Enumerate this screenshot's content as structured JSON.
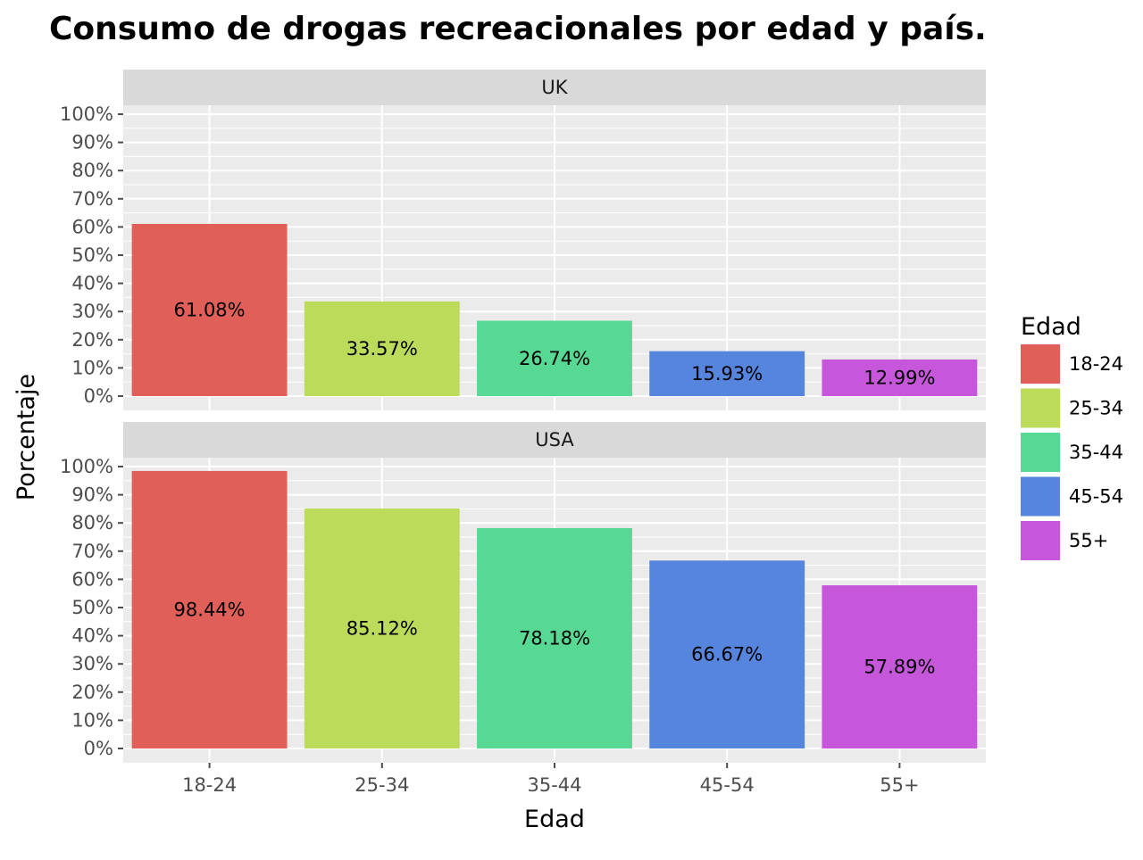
{
  "chart_data": {
    "type": "bar",
    "title": "Consumo de drogas recreacionales por edad y país.",
    "xlabel": "Edad",
    "ylabel": "Porcentaje",
    "categories": [
      "18-24",
      "25-34",
      "35-44",
      "45-54",
      "55+"
    ],
    "ylim": [
      0,
      100
    ],
    "y_ticks": [
      "0%",
      "10%",
      "20%",
      "30%",
      "40%",
      "50%",
      "60%",
      "70%",
      "80%",
      "90%",
      "100%"
    ],
    "grid": true,
    "legend": {
      "title": "Edad",
      "position": "right",
      "entries": [
        "18-24",
        "25-34",
        "35-44",
        "45-54",
        "55+"
      ]
    },
    "colors": [
      "#e05f58",
      "#bcdb5b",
      "#57d994",
      "#5585dc",
      "#c657db"
    ],
    "facets": [
      {
        "name": "UK",
        "values": [
          61.08,
          33.57,
          26.74,
          15.93,
          12.99
        ],
        "labels": [
          "61.08%",
          "33.57%",
          "26.74%",
          "15.93%",
          "12.99%"
        ]
      },
      {
        "name": "USA",
        "values": [
          98.44,
          85.12,
          78.18,
          66.67,
          57.89
        ],
        "labels": [
          "98.44%",
          "85.12%",
          "78.18%",
          "66.67%",
          "57.89%"
        ]
      }
    ]
  }
}
